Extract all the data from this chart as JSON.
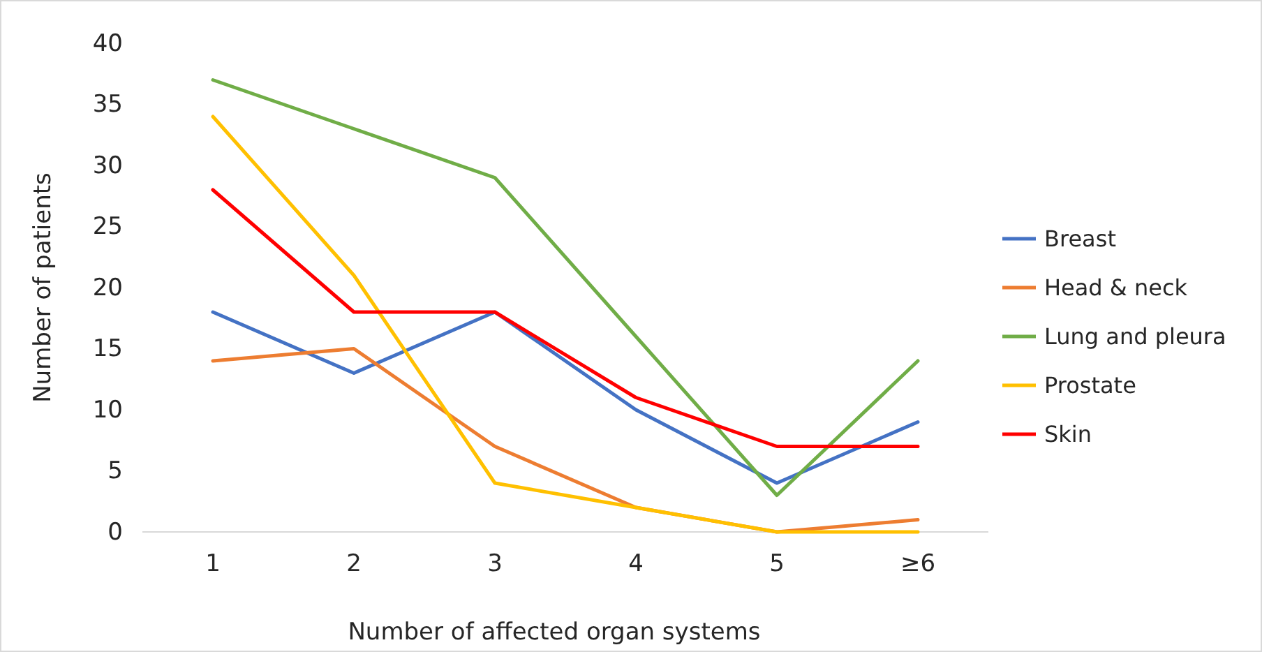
{
  "chart_data": {
    "type": "line",
    "xlabel": "Number of affected organ systems",
    "ylabel": "Number of patients",
    "categories": [
      "1",
      "2",
      "3",
      "4",
      "5",
      "≥6"
    ],
    "ylim": [
      0,
      40
    ],
    "yticks": [
      0,
      5,
      10,
      15,
      20,
      25,
      30,
      35,
      40
    ],
    "grid": false,
    "legend": "right",
    "series": [
      {
        "name": "Breast",
        "color": "#4472c4",
        "values": [
          18,
          13,
          18,
          10,
          4,
          9
        ]
      },
      {
        "name": "Head & neck",
        "color": "#ed7d31",
        "values": [
          14,
          15,
          7,
          2,
          0,
          1
        ]
      },
      {
        "name": "Lung and pleura",
        "color": "#70ad47",
        "values": [
          37,
          33,
          29,
          16,
          3,
          14
        ]
      },
      {
        "name": "Prostate",
        "color": "#ffc000",
        "values": [
          34,
          21,
          4,
          2,
          0,
          0
        ]
      },
      {
        "name": "Skin",
        "color": "#ff0000",
        "values": [
          28,
          18,
          18,
          11,
          7,
          7
        ]
      }
    ]
  }
}
